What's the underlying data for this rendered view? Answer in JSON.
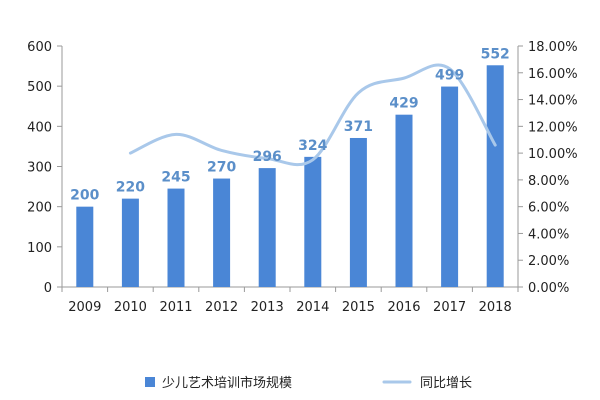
{
  "chart_data": {
    "type": "bar",
    "categories": [
      "2009",
      "2010",
      "2011",
      "2012",
      "2013",
      "2014",
      "2015",
      "2016",
      "2017",
      "2018"
    ],
    "series": [
      {
        "name": "少儿艺术培训市场规模",
        "type": "bar",
        "axis": "left",
        "color": "#4A86D6",
        "values": [
          200,
          220,
          245,
          270,
          296,
          324,
          371,
          429,
          499,
          552
        ],
        "data_labels": [
          "200",
          "220",
          "245",
          "270",
          "296",
          "324",
          "371",
          "429",
          "499",
          "552"
        ]
      },
      {
        "name": "同比增长",
        "type": "line",
        "axis": "right",
        "color": "#A9C8EA",
        "values": [
          null,
          10.0,
          11.4,
          10.2,
          9.6,
          9.5,
          14.5,
          15.6,
          16.3,
          10.6
        ]
      }
    ],
    "y_left": {
      "ylim": [
        0,
        600
      ],
      "ticks": [
        "0",
        "100",
        "200",
        "300",
        "400",
        "500",
        "600"
      ]
    },
    "y_right": {
      "ylim": [
        0,
        18
      ],
      "ticks": [
        "0.00%",
        "2.00%",
        "4.00%",
        "6.00%",
        "8.00%",
        "10.00%",
        "12.00%",
        "14.00%",
        "16.00%",
        "18.00%"
      ]
    },
    "legend": {
      "position": "bottom",
      "bar_label": "少儿艺术培训市场规模",
      "line_label": "同比增长"
    },
    "grid": false,
    "title": ""
  }
}
